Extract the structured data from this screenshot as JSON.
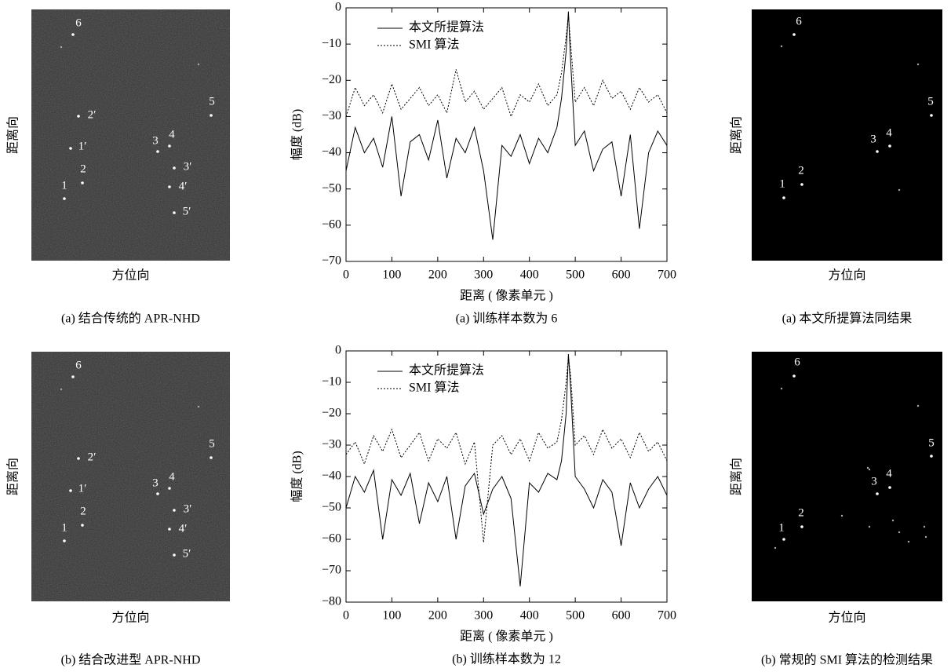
{
  "panels": [
    {
      "caption": "(a) 结合传统的 APR-NHD",
      "xlabel": "方位向",
      "ylabel": "距离向",
      "labels": [
        "6",
        "2′",
        "5",
        "1′",
        "3",
        "4",
        "3′",
        "2",
        "1",
        "4′",
        "5′"
      ]
    },
    {
      "caption": "(b) 结合改进型 APR-NHD",
      "xlabel": "方位向",
      "ylabel": "距离向",
      "labels": [
        "6",
        "2′",
        "5",
        "1′",
        "3",
        "4",
        "3′",
        "2",
        "1",
        "4′",
        "5′"
      ]
    },
    {
      "caption": "(a) 本文所提算法同结果",
      "xlabel": "方位向",
      "ylabel": "距离向",
      "labels": [
        "6",
        "5",
        "4",
        "3",
        "2",
        "1"
      ]
    },
    {
      "caption": "(b) 常规的 SMI 算法的检测结果",
      "xlabel": "方位向",
      "ylabel": "距离向",
      "labels": [
        "6",
        "5",
        "4",
        "3",
        "2",
        "1"
      ]
    }
  ],
  "chart_data": [
    {
      "type": "line",
      "caption": "(a) 训练样本数为 6",
      "xlabel": "距离 ( 像素单元 )",
      "ylabel": "幅度 (dB)",
      "legend": "upper left",
      "x": [
        0,
        20,
        40,
        60,
        80,
        100,
        120,
        140,
        160,
        180,
        200,
        220,
        240,
        260,
        280,
        300,
        320,
        340,
        360,
        380,
        400,
        420,
        440,
        460,
        470,
        480,
        485,
        490,
        500,
        520,
        540,
        560,
        580,
        600,
        620,
        640,
        660,
        680,
        700
      ],
      "series": [
        {
          "name": "本文所提算法",
          "color": "#000000",
          "linestyle": "solid",
          "values": [
            -45,
            -33,
            -40,
            -36,
            -44,
            -30,
            -52,
            -37,
            -35,
            -42,
            -31,
            -47,
            -36,
            -40,
            -33,
            -45,
            -64,
            -38,
            -41,
            -35,
            -43,
            -36,
            -40,
            -33,
            -25,
            -12,
            -1,
            -15,
            -38,
            -34,
            -45,
            -39,
            -37,
            -52,
            -35,
            -61,
            -40,
            -34,
            -38
          ]
        },
        {
          "name": "SMI 算法",
          "color": "#000000",
          "linestyle": "dotted",
          "values": [
            -30,
            -22,
            -27,
            -24,
            -29,
            -21,
            -28,
            -25,
            -22,
            -27,
            -24,
            -29,
            -17,
            -26,
            -23,
            -28,
            -25,
            -22,
            -30,
            -24,
            -26,
            -21,
            -27,
            -24,
            -18,
            -8,
            -2,
            -10,
            -26,
            -22,
            -27,
            -20,
            -25,
            -23,
            -28,
            -22,
            -26,
            -24,
            -29
          ]
        }
      ],
      "xlim": [
        0,
        700
      ],
      "xticks": [
        0,
        100,
        200,
        300,
        400,
        500,
        600,
        700
      ],
      "ylim": [
        -70,
        0
      ],
      "yticks": [
        0,
        {
          "value": -10,
          "label": "−10"
        },
        {
          "value": -20,
          "label": "−20"
        },
        {
          "value": -30,
          "label": "−30"
        },
        {
          "value": -40,
          "label": "−40"
        },
        {
          "value": -50,
          "label": "−50"
        },
        {
          "value": -60,
          "label": "−60"
        },
        {
          "value": -70,
          "label": "−70"
        }
      ]
    },
    {
      "type": "line",
      "caption": "(b) 训练样本数为 12",
      "xlabel": "距离 ( 像素单元 )",
      "ylabel": "幅度 (dB)",
      "legend": "upper left",
      "x": [
        0,
        20,
        40,
        60,
        80,
        100,
        120,
        140,
        160,
        180,
        200,
        220,
        240,
        260,
        280,
        300,
        320,
        340,
        360,
        380,
        400,
        420,
        440,
        460,
        470,
        480,
        485,
        490,
        500,
        520,
        540,
        560,
        580,
        600,
        620,
        640,
        660,
        680,
        700
      ],
      "series": [
        {
          "name": "本文所提算法",
          "color": "#000000",
          "linestyle": "solid",
          "values": [
            -50,
            -40,
            -45,
            -38,
            -60,
            -41,
            -46,
            -39,
            -55,
            -42,
            -48,
            -40,
            -60,
            -43,
            -39,
            -52,
            -44,
            -40,
            -47,
            -75,
            -42,
            -45,
            -39,
            -41,
            -35,
            -20,
            -1,
            -12,
            -40,
            -44,
            -50,
            -41,
            -45,
            -62,
            -42,
            -50,
            -44,
            -40,
            -46
          ]
        },
        {
          "name": "SMI 算法",
          "color": "#000000",
          "linestyle": "dotted",
          "values": [
            -33,
            -29,
            -36,
            -27,
            -32,
            -25,
            -34,
            -30,
            -26,
            -35,
            -28,
            -31,
            -26,
            -36,
            -29,
            -61,
            -30,
            -27,
            -33,
            -28,
            -35,
            -26,
            -31,
            -29,
            -22,
            -10,
            -2,
            -8,
            -30,
            -27,
            -33,
            -25,
            -31,
            -28,
            -34,
            -26,
            -32,
            -29,
            -35
          ]
        }
      ],
      "xlim": [
        0,
        700
      ],
      "xticks": [
        0,
        100,
        200,
        300,
        400,
        500,
        600,
        700
      ],
      "ylim": [
        -80,
        0
      ],
      "yticks": [
        0,
        {
          "value": -10,
          "label": "−10"
        },
        {
          "value": -20,
          "label": "−20"
        },
        {
          "value": -30,
          "label": "−30"
        },
        {
          "value": -40,
          "label": "−40"
        },
        {
          "value": -50,
          "label": "−50"
        },
        {
          "value": -60,
          "label": "−60"
        },
        {
          "value": -70,
          "label": "−70"
        },
        {
          "value": -80,
          "label": "−80"
        }
      ]
    }
  ]
}
